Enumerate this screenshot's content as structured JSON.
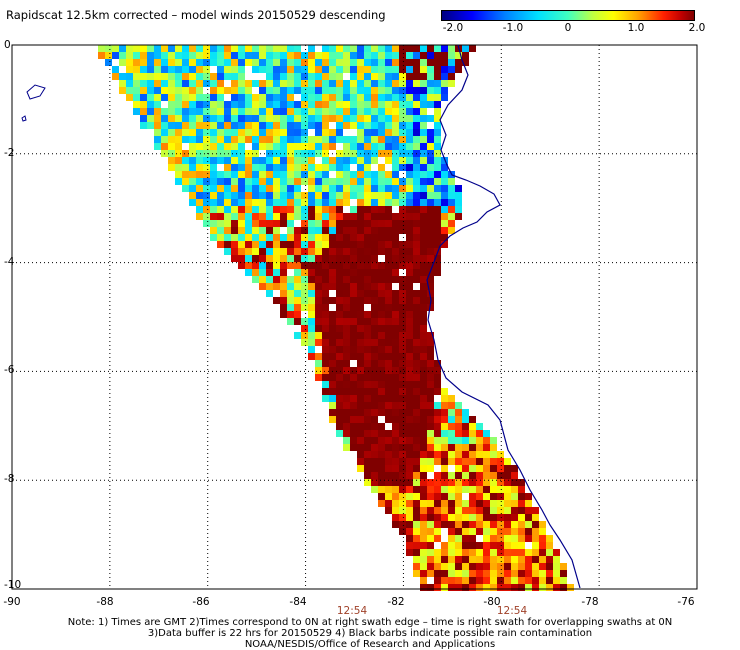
{
  "title": "Rapidscat 12.5km corrected – model winds 20150529 descending",
  "colorbar": {
    "labels": [
      "-2.0",
      "-1.0",
      "0",
      "1.0",
      "2.0"
    ],
    "min": -2.0,
    "max": 2.0
  },
  "axes": {
    "lat_labels": [
      "0",
      "-2",
      "-4",
      "-6",
      "-8",
      "-10"
    ],
    "lon_labels": [
      "-90",
      "-88",
      "-86",
      "-84",
      "-82",
      "-80",
      "-78",
      "-76"
    ],
    "lat_range": [
      -10,
      0
    ],
    "lon_range": [
      -90,
      -76
    ],
    "grid": "dotted"
  },
  "time_labels": [
    "12:54",
    "12:54"
  ],
  "notes": [
    "Note: 1) Times are GMT 2)Times correspond to 0N at right swath edge – time is right swath for overlapping swaths at 0N",
    "3)Data buffer is 22 hrs for 20150529 4) Black barbs indicate possible rain contamination",
    "NOAA/NESDIS/Office of Research and Applications"
  ],
  "colors": {
    "strong_positive": "#8b0000",
    "coast": "#00008b"
  }
}
